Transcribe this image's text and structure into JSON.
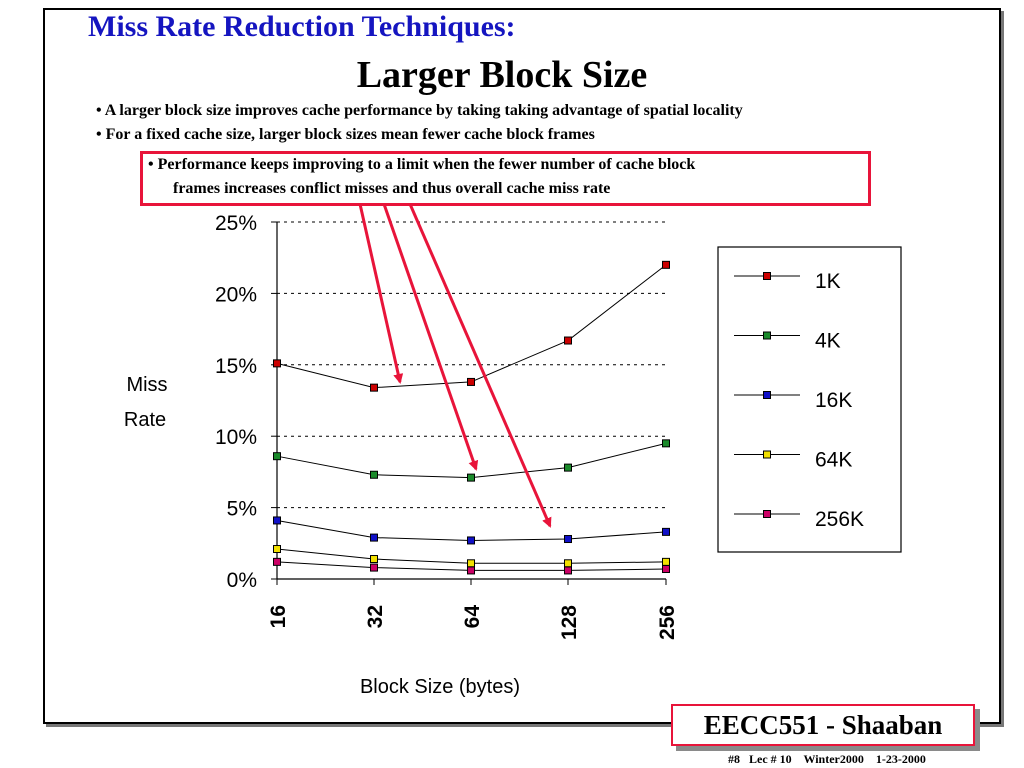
{
  "slide": {
    "title": "Miss Rate Reduction Techniques:",
    "subtitle": "Larger Block Size",
    "bullets": [
      "•  A larger block size improves cache performance by taking taking advantage of spatial locality",
      "•  For a fixed cache size, larger block sizes mean fewer cache block frames"
    ],
    "callout_line1": "•     Performance keeps improving to a limit  when  the fewer number of cache block",
    "callout_line2": "frames increases conflict misses and thus overall cache miss rate",
    "badge": "EECC551 - Shaaban",
    "footer": "#8   Lec # 10    Winter2000    1-23-2000"
  },
  "colors": {
    "title": "#1515c0",
    "accent_red": "#e8143a",
    "line": "#000000"
  },
  "chart_data": {
    "type": "line",
    "categories": [
      "16",
      "32",
      "64",
      "128",
      "256"
    ],
    "xlabel": "Block Size (bytes)",
    "ylabel_line1": "Miss",
    "ylabel_line2": "Rate",
    "ylim": [
      0,
      25
    ],
    "yticks": [
      0,
      5,
      10,
      15,
      20,
      25
    ],
    "ytick_labels": [
      "0%",
      "5%",
      "10%",
      "15%",
      "20%",
      "25%"
    ],
    "grid": true,
    "legend_position": "right",
    "series": [
      {
        "name": "1K",
        "color": "#cc0000",
        "values": [
          15.1,
          13.4,
          13.8,
          16.7,
          22.0
        ]
      },
      {
        "name": "4K",
        "color": "#1a8a2a",
        "values": [
          8.6,
          7.3,
          7.1,
          7.8,
          9.5
        ]
      },
      {
        "name": "16K",
        "color": "#1010c8",
        "values": [
          4.1,
          2.9,
          2.7,
          2.8,
          3.3
        ]
      },
      {
        "name": "64K",
        "color": "#f2e000",
        "values": [
          2.1,
          1.4,
          1.1,
          1.1,
          1.2
        ]
      },
      {
        "name": "256K",
        "color": "#cc0066",
        "values": [
          1.2,
          0.8,
          0.6,
          0.6,
          0.7
        ]
      }
    ]
  }
}
